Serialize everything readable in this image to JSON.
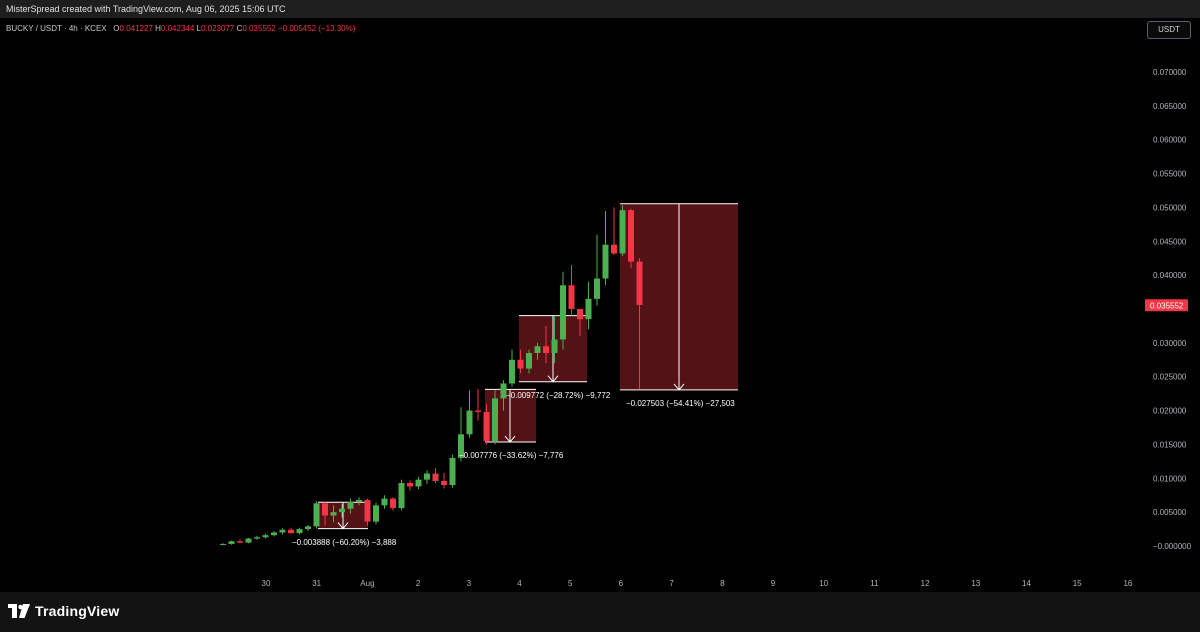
{
  "header": {
    "credit": "MisterSpread created with TradingView.com, Aug 06, 2025 15:06 UTC"
  },
  "legend": {
    "symbol": "BUCKY / USDT · 4h · KCEX",
    "o_key": "O",
    "o_val": "0.041227",
    "h_key": "H",
    "h_val": "0.042344",
    "l_key": "L",
    "l_val": "0.023077",
    "c_key": "C",
    "c_val": "0.035552",
    "change": "−0.005452 (−13.30%)"
  },
  "currency_button": "USDT",
  "price_axis": {
    "ticks": [
      "0.070000",
      "0.065000",
      "0.060000",
      "0.055000",
      "0.050000",
      "0.045000",
      "0.040000",
      "0.030000",
      "0.025000",
      "0.020000",
      "0.015000",
      "0.010000",
      "0.005000",
      "−0.000000"
    ],
    "last_price_label": "0.035552"
  },
  "time_axis": {
    "ticks": [
      "30",
      "31",
      "Aug",
      "2",
      "3",
      "4",
      "5",
      "6",
      "7",
      "8",
      "9",
      "10",
      "11",
      "12",
      "13",
      "14",
      "15",
      "16"
    ]
  },
  "colors": {
    "up": "#4caf50",
    "down": "#f23645",
    "box_fill": "#5a1418",
    "box_border": "#ffffff"
  },
  "measurements": [
    {
      "label": "−0.003888 (−60.20%) −3,888"
    },
    {
      "label": "−0.007776 (−33.62%) −7,776"
    },
    {
      "label": "−0.009772 (−28.72%) −9,772"
    },
    {
      "label": "−0.027503 (−54.41%) −27,503"
    }
  ],
  "footer": {
    "brand": "TradingView"
  },
  "chart_data": {
    "type": "candlestick",
    "symbol": "BUCKY / USDT",
    "interval": "4h",
    "exchange": "KCEX",
    "ylim": [
      0,
      0.072
    ],
    "x_tick_labels": [
      "30",
      "31",
      "Aug",
      "2",
      "3",
      "4",
      "5",
      "6",
      "7",
      "8",
      "9",
      "10",
      "11",
      "12",
      "13",
      "14",
      "15",
      "16"
    ],
    "last_price": 0.035552,
    "candles": [
      {
        "o": 0.0002,
        "h": 0.0004,
        "l": 0.0001,
        "c": 0.0003
      },
      {
        "o": 0.0003,
        "h": 0.0008,
        "l": 0.0002,
        "c": 0.0007
      },
      {
        "o": 0.0007,
        "h": 0.001,
        "l": 0.0004,
        "c": 0.0005
      },
      {
        "o": 0.0005,
        "h": 0.0012,
        "l": 0.0004,
        "c": 0.0011
      },
      {
        "o": 0.0011,
        "h": 0.0015,
        "l": 0.0009,
        "c": 0.0013
      },
      {
        "o": 0.0013,
        "h": 0.0018,
        "l": 0.0011,
        "c": 0.0016
      },
      {
        "o": 0.0016,
        "h": 0.0022,
        "l": 0.0014,
        "c": 0.002
      },
      {
        "o": 0.002,
        "h": 0.0026,
        "l": 0.0017,
        "c": 0.0024
      },
      {
        "o": 0.0024,
        "h": 0.0027,
        "l": 0.0018,
        "c": 0.0019
      },
      {
        "o": 0.0019,
        "h": 0.0027,
        "l": 0.0017,
        "c": 0.0025
      },
      {
        "o": 0.0025,
        "h": 0.0031,
        "l": 0.0022,
        "c": 0.0029
      },
      {
        "o": 0.0029,
        "h": 0.0066,
        "l": 0.0026,
        "c": 0.0063
      },
      {
        "o": 0.0063,
        "h": 0.0066,
        "l": 0.003,
        "c": 0.0045
      },
      {
        "o": 0.0045,
        "h": 0.006,
        "l": 0.0035,
        "c": 0.005
      },
      {
        "o": 0.005,
        "h": 0.0062,
        "l": 0.0042,
        "c": 0.0055
      },
      {
        "o": 0.0055,
        "h": 0.007,
        "l": 0.0048,
        "c": 0.0065
      },
      {
        "o": 0.0065,
        "h": 0.0072,
        "l": 0.006,
        "c": 0.0068
      },
      {
        "o": 0.0068,
        "h": 0.007,
        "l": 0.003,
        "c": 0.0036
      },
      {
        "o": 0.0036,
        "h": 0.0064,
        "l": 0.0032,
        "c": 0.006
      },
      {
        "o": 0.006,
        "h": 0.0075,
        "l": 0.0055,
        "c": 0.007
      },
      {
        "o": 0.007,
        "h": 0.0072,
        "l": 0.0052,
        "c": 0.0056
      },
      {
        "o": 0.0056,
        "h": 0.0098,
        "l": 0.0053,
        "c": 0.0093
      },
      {
        "o": 0.0093,
        "h": 0.0097,
        "l": 0.0082,
        "c": 0.0088
      },
      {
        "o": 0.0088,
        "h": 0.0102,
        "l": 0.0084,
        "c": 0.0098
      },
      {
        "o": 0.0098,
        "h": 0.0112,
        "l": 0.0092,
        "c": 0.0107
      },
      {
        "o": 0.0107,
        "h": 0.0115,
        "l": 0.0093,
        "c": 0.0096
      },
      {
        "o": 0.0096,
        "h": 0.0108,
        "l": 0.0085,
        "c": 0.009
      },
      {
        "o": 0.009,
        "h": 0.0135,
        "l": 0.0086,
        "c": 0.013
      },
      {
        "o": 0.013,
        "h": 0.0205,
        "l": 0.0125,
        "c": 0.0165
      },
      {
        "o": 0.0165,
        "h": 0.023,
        "l": 0.016,
        "c": 0.02
      },
      {
        "o": 0.02,
        "h": 0.0232,
        "l": 0.0185,
        "c": 0.0198
      },
      {
        "o": 0.0198,
        "h": 0.021,
        "l": 0.015,
        "c": 0.0155
      },
      {
        "o": 0.0155,
        "h": 0.023,
        "l": 0.015,
        "c": 0.0218
      },
      {
        "o": 0.0218,
        "h": 0.0245,
        "l": 0.02,
        "c": 0.024
      },
      {
        "o": 0.024,
        "h": 0.029,
        "l": 0.0235,
        "c": 0.0275
      },
      {
        "o": 0.0275,
        "h": 0.029,
        "l": 0.0255,
        "c": 0.0262
      },
      {
        "o": 0.0262,
        "h": 0.029,
        "l": 0.0255,
        "c": 0.0285
      },
      {
        "o": 0.0285,
        "h": 0.03,
        "l": 0.0275,
        "c": 0.0295
      },
      {
        "o": 0.0295,
        "h": 0.0325,
        "l": 0.027,
        "c": 0.0285
      },
      {
        "o": 0.0285,
        "h": 0.034,
        "l": 0.027,
        "c": 0.0305
      },
      {
        "o": 0.0305,
        "h": 0.0405,
        "l": 0.029,
        "c": 0.0385
      },
      {
        "o": 0.0385,
        "h": 0.0415,
        "l": 0.034,
        "c": 0.035
      },
      {
        "o": 0.035,
        "h": 0.0345,
        "l": 0.031,
        "c": 0.0335
      },
      {
        "o": 0.0335,
        "h": 0.039,
        "l": 0.032,
        "c": 0.0365
      },
      {
        "o": 0.0365,
        "h": 0.046,
        "l": 0.0355,
        "c": 0.0395
      },
      {
        "o": 0.0395,
        "h": 0.0495,
        "l": 0.0385,
        "c": 0.0445
      },
      {
        "o": 0.0445,
        "h": 0.05,
        "l": 0.043,
        "c": 0.0432
      },
      {
        "o": 0.0432,
        "h": 0.0503,
        "l": 0.0428,
        "c": 0.0496
      },
      {
        "o": 0.0496,
        "h": 0.0498,
        "l": 0.041,
        "c": 0.042
      },
      {
        "o": 0.042,
        "h": 0.0425,
        "l": 0.0231,
        "c": 0.0356
      }
    ],
    "measurements": [
      {
        "from_price": 0.00646,
        "to_price": 0.00257,
        "change": -0.003888,
        "percent": -60.2,
        "ticks": -3888
      },
      {
        "from_price": 0.02313,
        "to_price": 0.01535,
        "change": -0.007776,
        "percent": -33.62,
        "ticks": -7776
      },
      {
        "from_price": 0.03403,
        "to_price": 0.02426,
        "change": -0.009772,
        "percent": -28.72,
        "ticks": -9772
      },
      {
        "from_price": 0.05055,
        "to_price": 0.02305,
        "change": -0.027503,
        "percent": -54.41,
        "ticks": -27503
      }
    ]
  }
}
